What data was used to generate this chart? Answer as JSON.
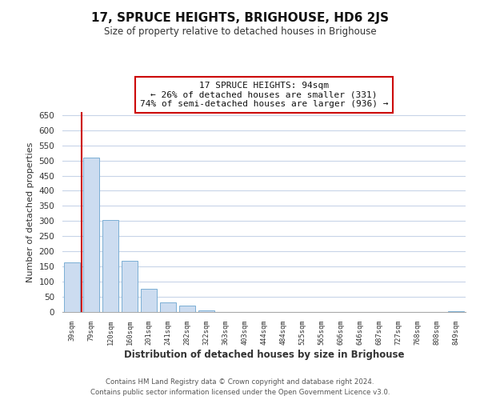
{
  "title": "17, SPRUCE HEIGHTS, BRIGHOUSE, HD6 2JS",
  "subtitle": "Size of property relative to detached houses in Brighouse",
  "xlabel": "Distribution of detached houses by size in Brighouse",
  "ylabel": "Number of detached properties",
  "bar_labels": [
    "39sqm",
    "79sqm",
    "120sqm",
    "160sqm",
    "201sqm",
    "241sqm",
    "282sqm",
    "322sqm",
    "363sqm",
    "403sqm",
    "444sqm",
    "484sqm",
    "525sqm",
    "565sqm",
    "606sqm",
    "646sqm",
    "687sqm",
    "727sqm",
    "768sqm",
    "808sqm",
    "849sqm"
  ],
  "bar_values": [
    165,
    510,
    303,
    168,
    76,
    32,
    20,
    5,
    1,
    0,
    0,
    0,
    0,
    0,
    0,
    0,
    0,
    0,
    0,
    0,
    3
  ],
  "bar_color": "#ccdcf0",
  "bar_edge_color": "#7bafd4",
  "vline_x": 0.5,
  "vline_color": "#cc0000",
  "annotation_title": "17 SPRUCE HEIGHTS: 94sqm",
  "annotation_line1": "← 26% of detached houses are smaller (331)",
  "annotation_line2": "74% of semi-detached houses are larger (936) →",
  "annotation_box_color": "#ffffff",
  "annotation_box_edge_color": "#cc0000",
  "ylim": [
    0,
    660
  ],
  "yticks": [
    0,
    50,
    100,
    150,
    200,
    250,
    300,
    350,
    400,
    450,
    500,
    550,
    600,
    650
  ],
  "footer_line1": "Contains HM Land Registry data © Crown copyright and database right 2024.",
  "footer_line2": "Contains public sector information licensed under the Open Government Licence v3.0.",
  "background_color": "#ffffff",
  "grid_color": "#c8d4e8"
}
